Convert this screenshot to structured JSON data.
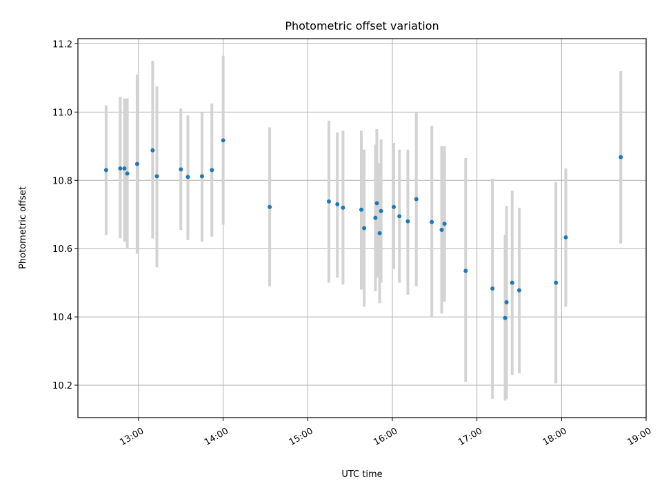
{
  "chart_data": {
    "type": "scatter",
    "title": "Photometric offset variation",
    "xlabel": "UTC time",
    "ylabel": "Photometric offset",
    "x_ticks": [
      "13:00",
      "14:00",
      "15:00",
      "16:00",
      "17:00",
      "18:00",
      "19:00"
    ],
    "y_ticks": [
      "10.2",
      "10.4",
      "10.6",
      "10.8",
      "11.0",
      "11.2"
    ],
    "xlim": [
      "12:17",
      "19:00"
    ],
    "ylim": [
      10.105,
      11.215
    ],
    "grid": true,
    "marker_color": "#1f77b4",
    "errorbar_color": "#d3d3d3",
    "series": [
      {
        "points": [
          {
            "x": "12:37",
            "y": 10.83,
            "lo": 10.64,
            "hi": 11.02
          },
          {
            "x": "12:47",
            "y": 10.835,
            "lo": 10.63,
            "hi": 11.045
          },
          {
            "x": "12:50",
            "y": 10.835,
            "lo": 10.62,
            "hi": 11.04
          },
          {
            "x": "12:52",
            "y": 10.82,
            "lo": 10.6,
            "hi": 11.04
          },
          {
            "x": "12:59",
            "y": 10.848,
            "lo": 10.585,
            "hi": 11.11
          },
          {
            "x": "13:10",
            "y": 10.888,
            "lo": 10.63,
            "hi": 11.15
          },
          {
            "x": "13:13",
            "y": 10.812,
            "lo": 10.545,
            "hi": 11.075
          },
          {
            "x": "13:30",
            "y": 10.832,
            "lo": 10.655,
            "hi": 11.01
          },
          {
            "x": "13:35",
            "y": 10.81,
            "lo": 10.625,
            "hi": 10.99
          },
          {
            "x": "13:45",
            "y": 10.812,
            "lo": 10.62,
            "hi": 11.0
          },
          {
            "x": "13:52",
            "y": 10.83,
            "lo": 10.635,
            "hi": 11.025
          },
          {
            "x": "14:00",
            "y": 10.917,
            "lo": 10.67,
            "hi": 11.165
          },
          {
            "x": "14:33",
            "y": 10.722,
            "lo": 10.49,
            "hi": 10.955
          },
          {
            "x": "15:15",
            "y": 10.738,
            "lo": 10.5,
            "hi": 10.975
          },
          {
            "x": "15:21",
            "y": 10.73,
            "lo": 10.515,
            "hi": 10.94
          },
          {
            "x": "15:25",
            "y": 10.72,
            "lo": 10.495,
            "hi": 10.945
          },
          {
            "x": "15:38",
            "y": 10.714,
            "lo": 10.48,
            "hi": 10.945
          },
          {
            "x": "15:40",
            "y": 10.66,
            "lo": 10.43,
            "hi": 10.89
          },
          {
            "x": "15:48",
            "y": 10.69,
            "lo": 10.475,
            "hi": 10.905
          },
          {
            "x": "15:49",
            "y": 10.733,
            "lo": 10.515,
            "hi": 10.95
          },
          {
            "x": "15:51",
            "y": 10.645,
            "lo": 10.44,
            "hi": 10.85
          },
          {
            "x": "15:52",
            "y": 10.71,
            "lo": 10.5,
            "hi": 10.92
          },
          {
            "x": "16:01",
            "y": 10.722,
            "lo": 10.54,
            "hi": 10.91
          },
          {
            "x": "16:05",
            "y": 10.695,
            "lo": 10.5,
            "hi": 10.89
          },
          {
            "x": "16:11",
            "y": 10.68,
            "lo": 10.465,
            "hi": 10.89
          },
          {
            "x": "16:17",
            "y": 10.745,
            "lo": 10.49,
            "hi": 11.0
          },
          {
            "x": "16:28",
            "y": 10.678,
            "lo": 10.4,
            "hi": 10.96
          },
          {
            "x": "16:35",
            "y": 10.655,
            "lo": 10.41,
            "hi": 10.9
          },
          {
            "x": "16:37",
            "y": 10.673,
            "lo": 10.445,
            "hi": 10.9
          },
          {
            "x": "16:52",
            "y": 10.535,
            "lo": 10.21,
            "hi": 10.865
          },
          {
            "x": "17:11",
            "y": 10.483,
            "lo": 10.16,
            "hi": 10.805
          },
          {
            "x": "17:20",
            "y": 10.397,
            "lo": 10.155,
            "hi": 10.64
          },
          {
            "x": "17:21",
            "y": 10.443,
            "lo": 10.16,
            "hi": 10.725
          },
          {
            "x": "17:25",
            "y": 10.5,
            "lo": 10.23,
            "hi": 10.77
          },
          {
            "x": "17:30",
            "y": 10.478,
            "lo": 10.235,
            "hi": 10.72
          },
          {
            "x": "17:56",
            "y": 10.5,
            "lo": 10.205,
            "hi": 10.795
          },
          {
            "x": "18:03",
            "y": 10.633,
            "lo": 10.43,
            "hi": 10.835
          },
          {
            "x": "18:42",
            "y": 10.868,
            "lo": 10.615,
            "hi": 11.12
          }
        ]
      }
    ]
  }
}
